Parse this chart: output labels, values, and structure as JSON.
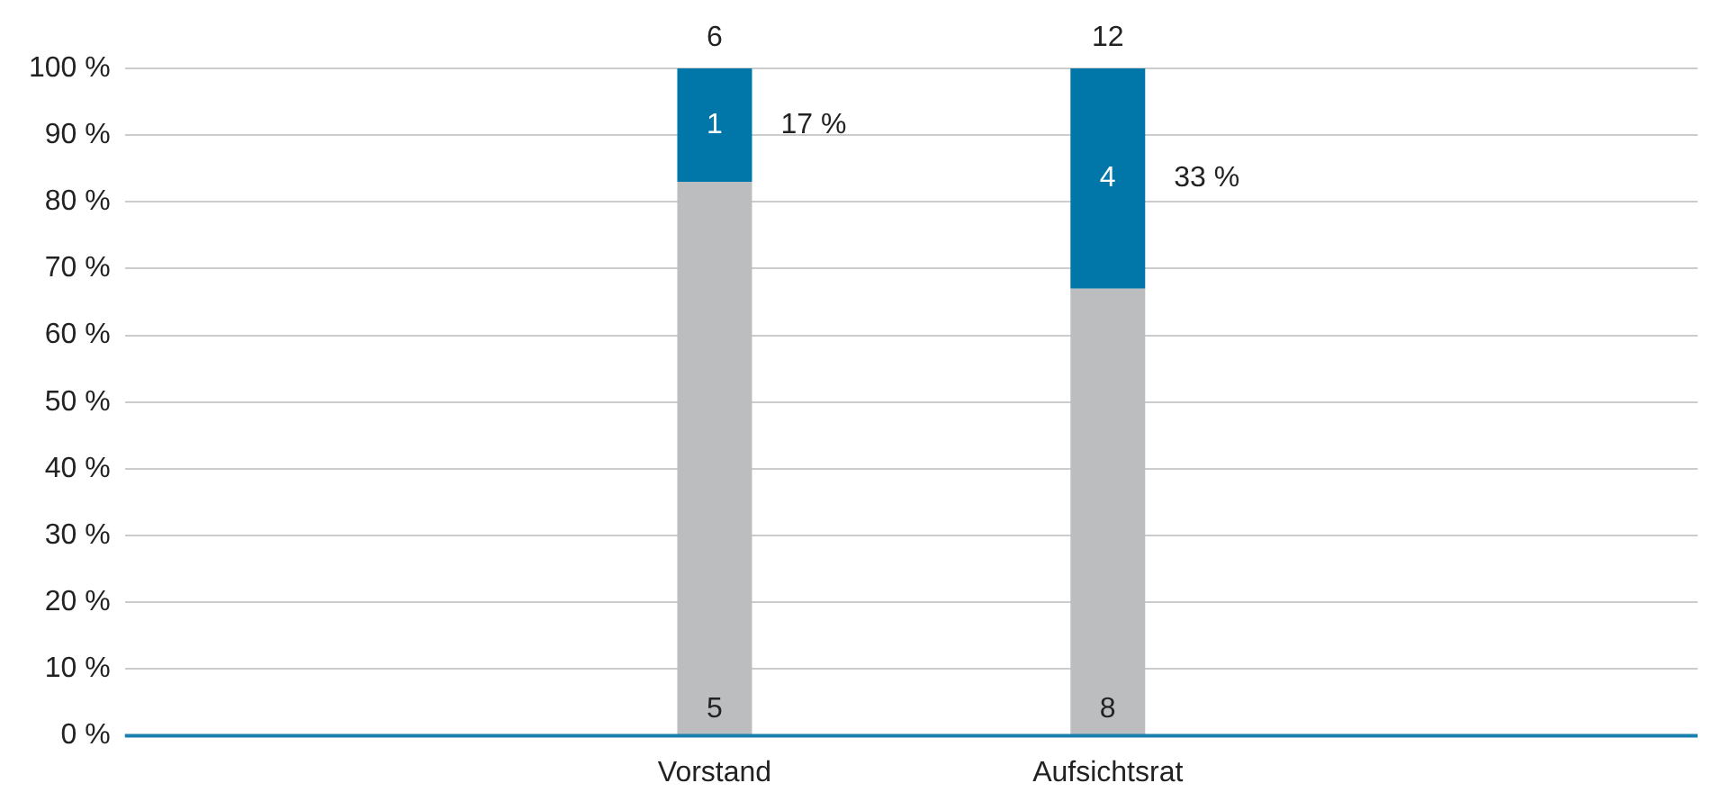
{
  "chart_data": {
    "type": "bar",
    "stacked": true,
    "categories": [
      null,
      "Vorstand",
      "Aufsichtsrat",
      null
    ],
    "series": [
      {
        "color": "#bcbdbf",
        "values": [
          null,
          83,
          67,
          null
        ]
      },
      {
        "color": "#0077a8",
        "values": [
          null,
          17,
          33,
          null
        ]
      }
    ],
    "annotations": [
      "6",
      "12",
      "1",
      "4",
      "5",
      "8",
      "17 %",
      "33 %"
    ],
    "ylim": [
      0,
      100
    ],
    "yticks": [
      {
        "value": 0,
        "label": "0 %"
      },
      {
        "value": 10,
        "label": "10 %"
      },
      {
        "value": 20,
        "label": "20 %"
      },
      {
        "value": 30,
        "label": "30 %"
      },
      {
        "value": 40,
        "label": "40 %"
      },
      {
        "value": 50,
        "label": "50 %"
      },
      {
        "value": 60,
        "label": "60 %"
      },
      {
        "value": 70,
        "label": "70 %"
      },
      {
        "value": 80,
        "label": "80 %"
      },
      {
        "value": 90,
        "label": "90 %"
      },
      {
        "value": 100,
        "label": "100 %"
      }
    ],
    "grid": "y",
    "legend": false
  }
}
